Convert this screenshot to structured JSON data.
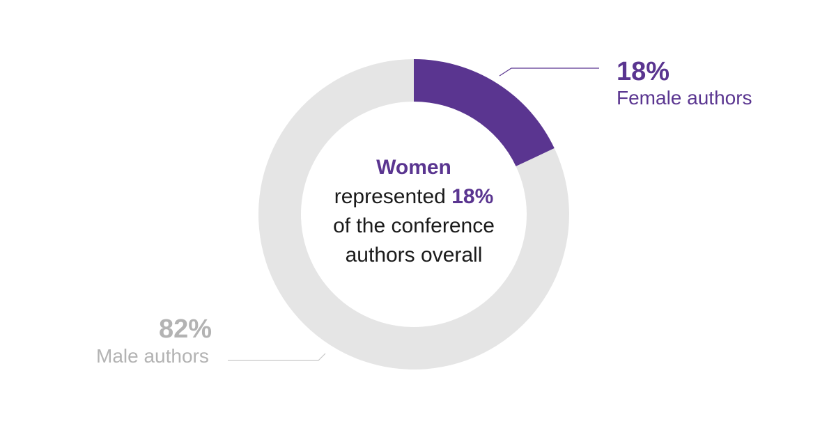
{
  "chart_data": {
    "type": "pie",
    "variant": "donut",
    "categories": [
      "Female authors",
      "Male authors"
    ],
    "values": [
      18,
      82
    ],
    "value_labels": [
      "18%",
      "82%"
    ],
    "colors": [
      "#5a3590",
      "#e5e5e5"
    ]
  },
  "labels": {
    "female_pct": "18%",
    "female_name": "Female authors",
    "male_pct": "82%",
    "male_name": "Male authors"
  },
  "center": {
    "line1": "Women",
    "line2_prefix": "represented ",
    "line2_value": "18%",
    "line3": "of the conference",
    "line4": "authors overall"
  },
  "colors": {
    "accent": "#5a3590",
    "track": "#e5e5e5",
    "muted_label": "#b3b3b3",
    "leader_female": "#5a3590",
    "leader_male": "#c8c8c8",
    "text": "#1a1a1a"
  }
}
